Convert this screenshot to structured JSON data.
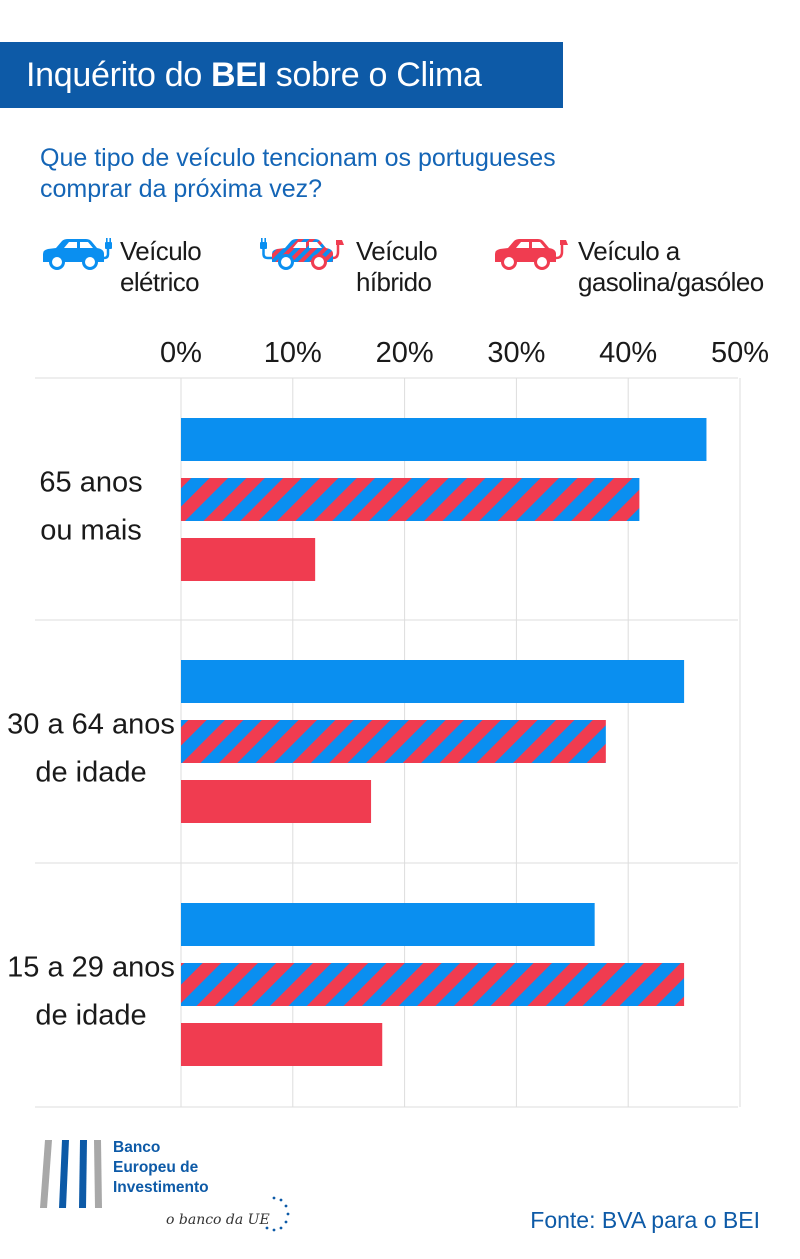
{
  "header": {
    "title_part1": "Inquérito do",
    "title_bold": "BEI",
    "title_part2": "sobre o Clima"
  },
  "question": {
    "line1": "Que tipo de veículo tencionam os portugueses",
    "line2": "comprar da próxima vez?"
  },
  "legend": [
    {
      "line1": "Veículo",
      "line2": "elétrico",
      "icon": "electric-car-icon"
    },
    {
      "line1": "Veículo",
      "line2": "híbrido",
      "icon": "hybrid-car-icon"
    },
    {
      "line1": "Veículo a",
      "line2": "gasolina/gasóleo",
      "icon": "petrol-car-icon"
    }
  ],
  "colors": {
    "electric": "#0a8ff0",
    "petrol": "#f03c50",
    "title_bg": "#0d5aa7",
    "text_blue": "#1465b6",
    "grid": "#dddddd"
  },
  "chart_data": {
    "type": "bar",
    "orientation": "horizontal",
    "title": "Que tipo de veículo tencionam os portugueses comprar da próxima vez?",
    "xlabel": "",
    "ylabel": "",
    "xlim": [
      0,
      50
    ],
    "tick_values": [
      0,
      10,
      20,
      30,
      40,
      50
    ],
    "tick_labels": [
      "0%",
      "10%",
      "20%",
      "30%",
      "40%",
      "50%"
    ],
    "categories": [
      {
        "line1": "65 anos",
        "line2": "ou mais"
      },
      {
        "line1": "30 a 64 anos",
        "line2": "de idade"
      },
      {
        "line1": "15 a 29 anos",
        "line2": "de idade"
      }
    ],
    "series": [
      {
        "name": "Veículo elétrico",
        "style": "solid-blue",
        "values": [
          47,
          45,
          37
        ]
      },
      {
        "name": "Veículo híbrido",
        "style": "striped",
        "values": [
          41,
          38,
          45
        ]
      },
      {
        "name": "Veículo a gasolina/gasóleo",
        "style": "solid-red",
        "values": [
          12,
          17,
          18
        ]
      }
    ]
  },
  "footer": {
    "bank_line1": "Banco",
    "bank_line2": "Europeu de",
    "bank_line3": "Investimento",
    "tagline": "o banco da UE",
    "source": "Fonte: BVA para o BEI"
  }
}
